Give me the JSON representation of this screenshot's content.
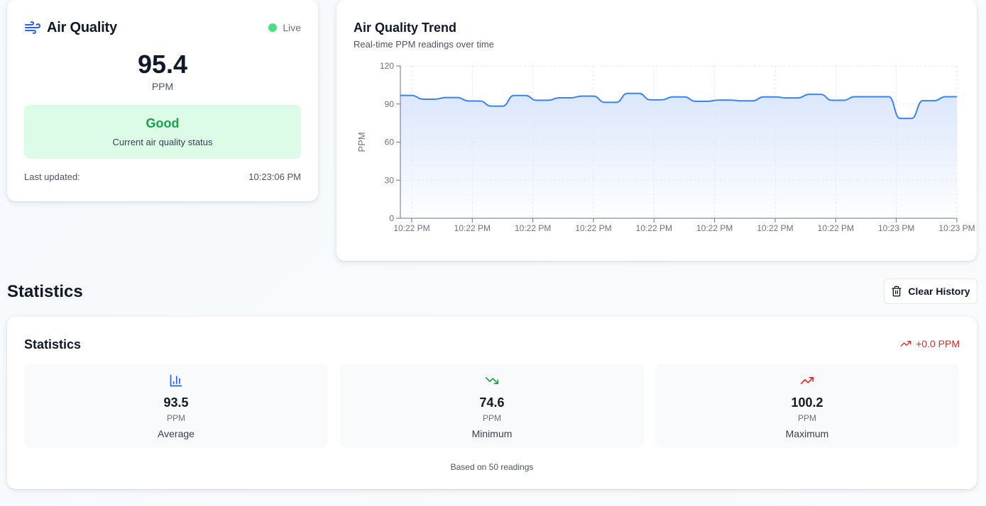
{
  "air_quality": {
    "title": "Air Quality",
    "live_label": "Live",
    "value": "95.4",
    "unit": "PPM",
    "status_label": "Good",
    "status_desc": "Current air quality status",
    "last_updated_label": "Last updated:",
    "last_updated_value": "10:23:06 PM",
    "icon": "wind-icon"
  },
  "trend": {
    "title": "Air Quality Trend",
    "subtitle": "Real-time PPM readings over time"
  },
  "chart_data": {
    "type": "area",
    "title": "Air Quality Trend",
    "subtitle": "Real-time PPM readings over time",
    "ylabel": "PPM",
    "xlabel": "",
    "ylim": [
      0,
      120
    ],
    "yticks": [
      0,
      30,
      60,
      90,
      120
    ],
    "xtick_labels": [
      "10:22 PM",
      "10:22 PM",
      "10:22 PM",
      "10:22 PM",
      "10:22 PM",
      "10:22 PM",
      "10:22 PM",
      "10:22 PM",
      "10:23 PM",
      "10:23 PM"
    ],
    "grid": true,
    "series": [
      {
        "values": [
          96.8,
          96.8,
          93.8,
          93.8,
          95.1,
          95.1,
          92.4,
          92.4,
          88.3,
          88.3,
          96.7,
          96.7,
          92.9,
          92.9,
          94.9,
          94.9,
          96.2,
          96.2,
          91.3,
          91.3,
          98.4,
          98.4,
          93.3,
          93.3,
          95.6,
          95.6,
          92.1,
          92.1,
          93.1,
          93.1,
          92.5,
          92.5,
          95.6,
          95.6,
          94.8,
          94.8,
          97.6,
          97.6,
          92.9,
          92.9,
          95.7,
          95.7,
          95.7,
          95.7,
          78.6,
          78.6,
          92.6,
          92.6,
          95.7,
          95.7
        ]
      }
    ],
    "line_color": "#3b82f6",
    "fill_color": "#dbe7fc"
  },
  "statistics": {
    "section_title": "Statistics",
    "clear_button_label": "Clear History",
    "card_title": "Statistics",
    "change_label": "+0.0 PPM",
    "average": {
      "value": "93.5",
      "unit": "PPM",
      "label": "Average"
    },
    "minimum": {
      "value": "74.6",
      "unit": "PPM",
      "label": "Minimum"
    },
    "maximum": {
      "value": "100.2",
      "unit": "PPM",
      "label": "Maximum"
    },
    "based_on": "Based on 50 readings"
  },
  "colors": {
    "good_bg": "#dcfce7",
    "good_text": "#16a34a",
    "live_dot": "#4ade80",
    "accent_blue": "#2563eb",
    "trend_up_red": "#dc2626",
    "trend_down_green": "#16a34a"
  }
}
